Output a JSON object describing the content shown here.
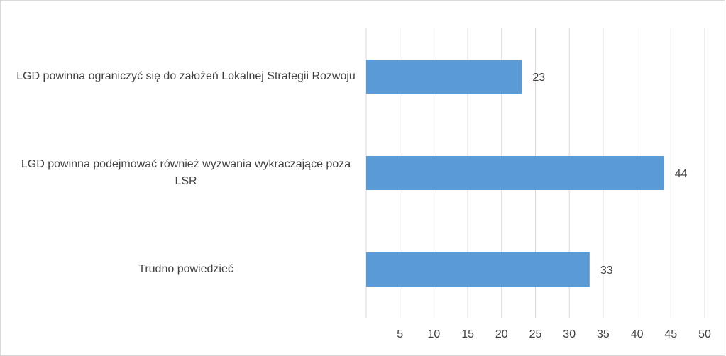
{
  "chart_data": {
    "type": "bar",
    "orientation": "horizontal",
    "categories": [
      "LGD powinna ograniczyć się do założeń Lokalnej Strategii Rozwoju",
      "LGD powinna podejmować również wyzwania wykraczające poza LSR",
      "Trudno powiedzieć"
    ],
    "values": [
      23,
      44,
      33
    ],
    "color": "#5b9bd5",
    "xlim": [
      0,
      50
    ],
    "xticks": [
      5,
      10,
      15,
      20,
      25,
      30,
      35,
      40,
      45,
      50
    ],
    "grid": true
  }
}
